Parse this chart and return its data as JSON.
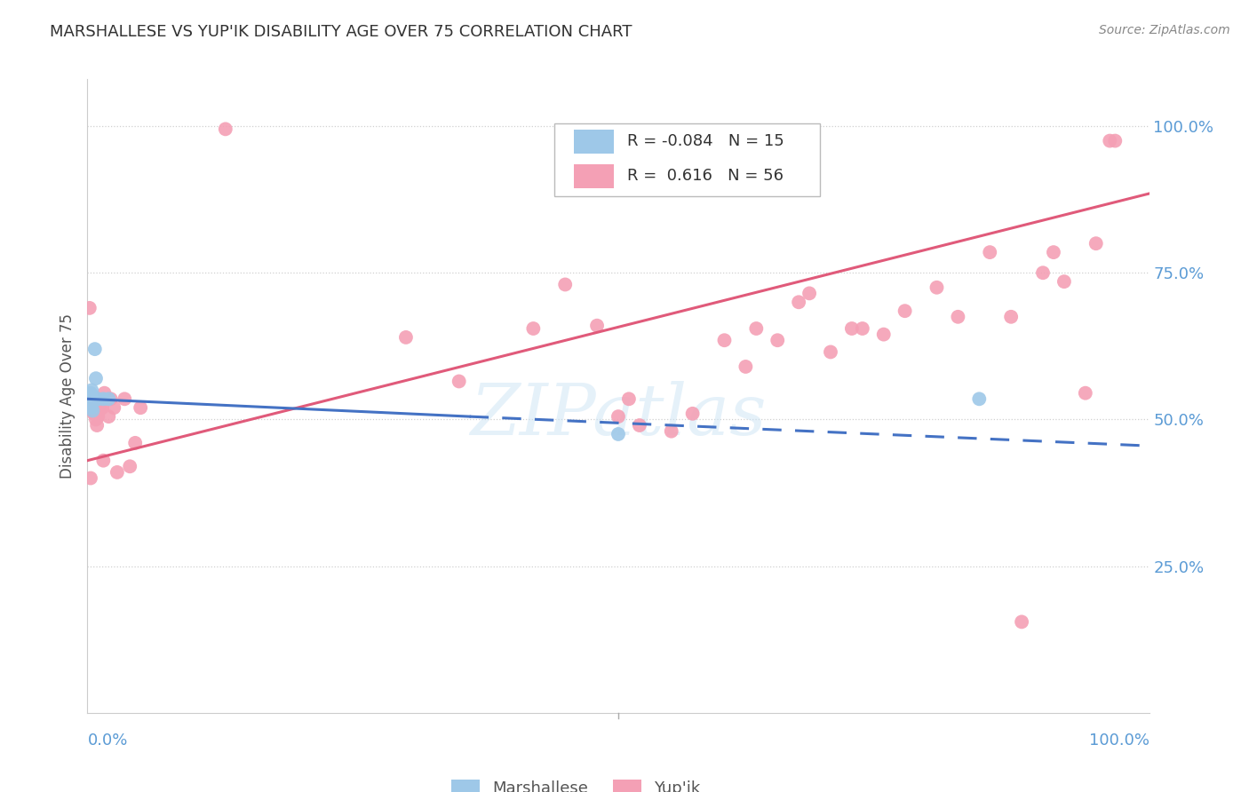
{
  "title": "MARSHALLESE VS YUP'IK DISABILITY AGE OVER 75 CORRELATION CHART",
  "source": "Source: ZipAtlas.com",
  "ylabel": "Disability Age Over 75",
  "ytick_labels": [
    "100.0%",
    "75.0%",
    "50.0%",
    "25.0%"
  ],
  "ytick_values": [
    1.0,
    0.75,
    0.5,
    0.25
  ],
  "xlim": [
    0.0,
    1.0
  ],
  "ylim": [
    0.0,
    1.08
  ],
  "legend_r_blue": "-0.084",
  "legend_n_blue": "15",
  "legend_r_pink": "0.616",
  "legend_n_pink": "56",
  "blue_scatter_x": [
    0.002,
    0.003,
    0.004,
    0.004,
    0.005,
    0.005,
    0.006,
    0.007,
    0.008,
    0.009,
    0.01,
    0.015,
    0.02,
    0.5,
    0.84
  ],
  "blue_scatter_y": [
    0.535,
    0.545,
    0.52,
    0.55,
    0.515,
    0.54,
    0.535,
    0.62,
    0.57,
    0.535,
    0.535,
    0.535,
    0.535,
    0.475,
    0.535
  ],
  "pink_scatter_x": [
    0.002,
    0.003,
    0.004,
    0.005,
    0.006,
    0.007,
    0.008,
    0.009,
    0.01,
    0.011,
    0.012,
    0.014,
    0.015,
    0.016,
    0.02,
    0.022,
    0.025,
    0.028,
    0.035,
    0.04,
    0.045,
    0.05,
    0.13,
    0.3,
    0.35,
    0.42,
    0.45,
    0.48,
    0.5,
    0.51,
    0.52,
    0.55,
    0.57,
    0.6,
    0.62,
    0.63,
    0.65,
    0.67,
    0.68,
    0.7,
    0.72,
    0.73,
    0.75,
    0.77,
    0.8,
    0.82,
    0.85,
    0.87,
    0.88,
    0.9,
    0.91,
    0.92,
    0.94,
    0.95,
    0.963,
    0.968
  ],
  "pink_scatter_y": [
    0.69,
    0.4,
    0.52,
    0.515,
    0.51,
    0.515,
    0.5,
    0.49,
    0.505,
    0.515,
    0.52,
    0.52,
    0.43,
    0.545,
    0.505,
    0.535,
    0.52,
    0.41,
    0.535,
    0.42,
    0.46,
    0.52,
    0.995,
    0.64,
    0.565,
    0.655,
    0.73,
    0.66,
    0.505,
    0.535,
    0.49,
    0.48,
    0.51,
    0.635,
    0.59,
    0.655,
    0.635,
    0.7,
    0.715,
    0.615,
    0.655,
    0.655,
    0.645,
    0.685,
    0.725,
    0.675,
    0.785,
    0.675,
    0.155,
    0.75,
    0.785,
    0.735,
    0.545,
    0.8,
    0.975,
    0.975
  ],
  "blue_line_start_x": 0.0,
  "blue_line_start_y": 0.535,
  "blue_line_solid_end_x": 0.36,
  "blue_line_solid_end_y": 0.505,
  "blue_line_end_x": 1.0,
  "blue_line_end_y": 0.455,
  "pink_line_start_x": 0.0,
  "pink_line_start_y": 0.43,
  "pink_line_end_x": 1.0,
  "pink_line_end_y": 0.885,
  "background_color": "#ffffff",
  "blue_color": "#9ec8e8",
  "pink_color": "#f4a0b5",
  "blue_line_color": "#4472c4",
  "pink_line_color": "#e05a7a",
  "watermark_text": "ZIPatlas",
  "grid_color": "#d0d0d0",
  "grid_linestyle": "dotted"
}
